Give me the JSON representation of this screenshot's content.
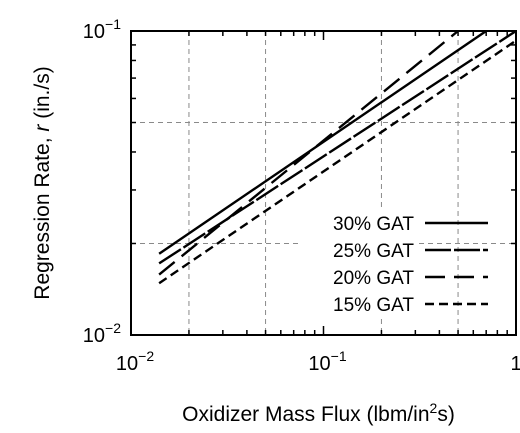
{
  "chart_data": {
    "type": "line",
    "title": "",
    "xlabel": "Oxidizer Mass Flux (lbm/in²s)",
    "ylabel": "Regression Rate, r (in./s)",
    "x_scale": "log",
    "y_scale": "log",
    "xlim": [
      0.01,
      1
    ],
    "ylim": [
      0.01,
      0.1
    ],
    "x_ticks": [
      {
        "value": 0.01,
        "base": "10",
        "exp": "−2"
      },
      {
        "value": 0.1,
        "base": "10",
        "exp": "−1"
      },
      {
        "value": 1,
        "base": "1",
        "exp": ""
      }
    ],
    "y_ticks": [
      {
        "value": 0.01,
        "base": "10",
        "exp": "−2"
      },
      {
        "value": 0.1,
        "base": "10",
        "exp": "−1"
      }
    ],
    "grid": true,
    "legend_position": "bottom-right",
    "series": [
      {
        "name": "30% GAT",
        "dash": "solid",
        "x": [
          0.014,
          0.7
        ],
        "y": [
          0.0185,
          0.1
        ]
      },
      {
        "name": "25% GAT",
        "dash": "long",
        "x": [
          0.014,
          1.0
        ],
        "y": [
          0.0172,
          0.1
        ]
      },
      {
        "name": "20% GAT",
        "dash": "longer",
        "x": [
          0.014,
          0.5
        ],
        "y": [
          0.0158,
          0.1
        ]
      },
      {
        "name": "15% GAT",
        "dash": "short",
        "x": [
          0.014,
          1.0
        ],
        "y": [
          0.0148,
          0.093
        ]
      }
    ]
  }
}
